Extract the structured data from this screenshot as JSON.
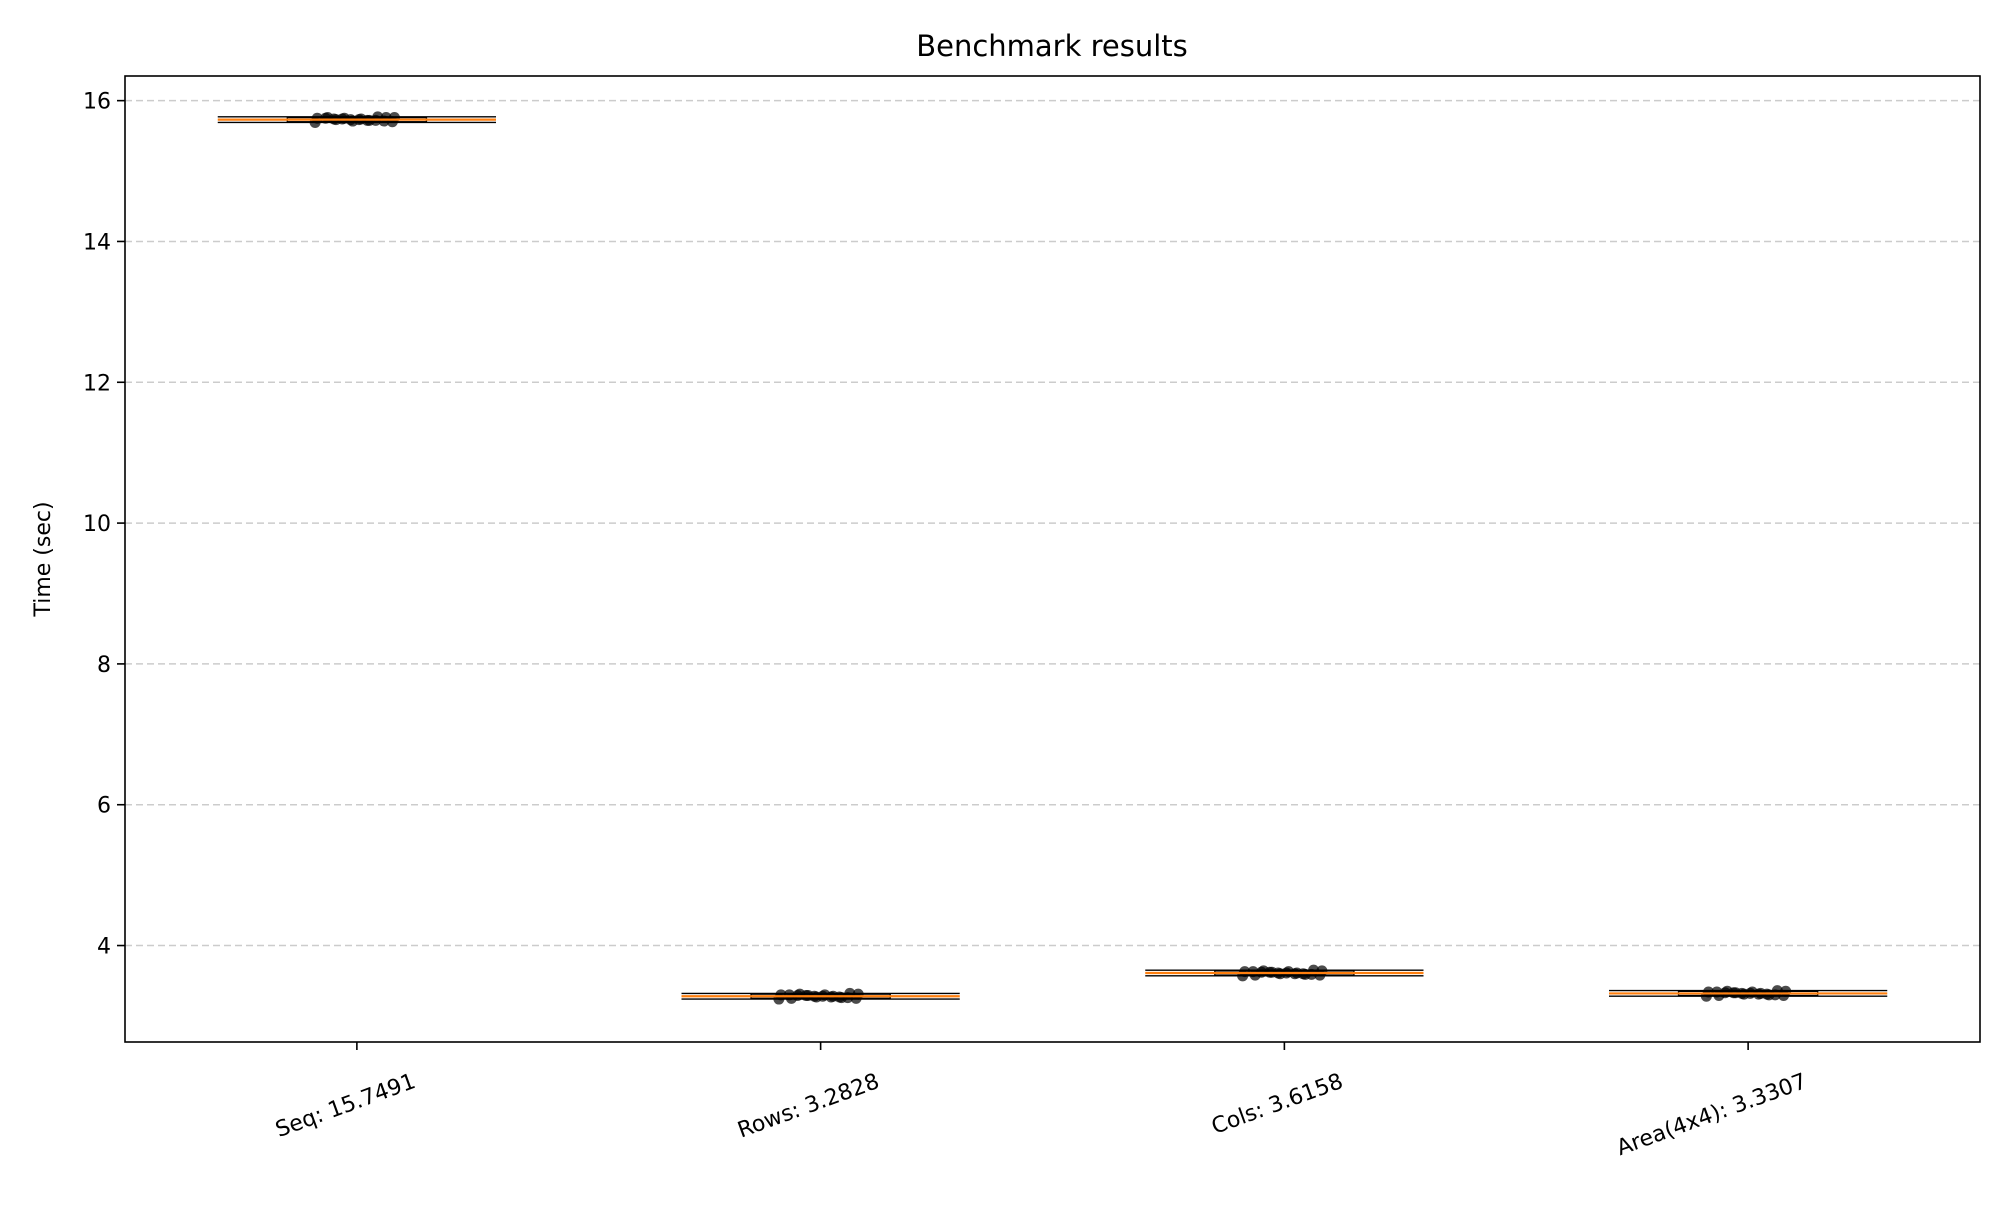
{
  "chart_data": {
    "type": "box",
    "title": "Benchmark results",
    "xlabel": "",
    "ylabel": "Time (sec)",
    "ylim": [
      2.63,
      16.35
    ],
    "yticks": [
      4,
      6,
      8,
      10,
      12,
      14,
      16
    ],
    "grid": "y-dashed",
    "categories": [
      "Seq: 15.7491",
      "Rows: 3.2828",
      "Cols: 3.6158",
      "Area(4x4): 3.3307"
    ],
    "series": [
      {
        "median": 15.73,
        "q1": 15.7,
        "q3": 15.76,
        "points": [
          15.69,
          15.7,
          15.71,
          15.72,
          15.72,
          15.73,
          15.73,
          15.74,
          15.74,
          15.75,
          15.75,
          15.76,
          15.76,
          15.77,
          15.72,
          15.74,
          15.71,
          15.75,
          15.73,
          15.76
        ]
      },
      {
        "median": 3.28,
        "q1": 3.25,
        "q3": 3.31,
        "points": [
          3.24,
          3.25,
          3.26,
          3.27,
          3.27,
          3.28,
          3.28,
          3.29,
          3.29,
          3.3,
          3.3,
          3.31,
          3.32,
          3.26,
          3.28,
          3.3,
          3.27,
          3.29,
          3.31,
          3.25
        ]
      },
      {
        "median": 3.61,
        "q1": 3.58,
        "q3": 3.64,
        "points": [
          3.57,
          3.58,
          3.59,
          3.6,
          3.6,
          3.61,
          3.61,
          3.62,
          3.62,
          3.63,
          3.63,
          3.64,
          3.65,
          3.59,
          3.61,
          3.63,
          3.6,
          3.62,
          3.64,
          3.58
        ]
      },
      {
        "median": 3.32,
        "q1": 3.29,
        "q3": 3.35,
        "points": [
          3.28,
          3.29,
          3.3,
          3.31,
          3.31,
          3.32,
          3.32,
          3.33,
          3.33,
          3.34,
          3.34,
          3.35,
          3.36,
          3.3,
          3.32,
          3.34,
          3.31,
          3.33,
          3.35,
          3.29
        ]
      }
    ],
    "colors": {
      "median": "#ff7f0e",
      "points": "#000000",
      "grid": "#cccccc"
    }
  }
}
